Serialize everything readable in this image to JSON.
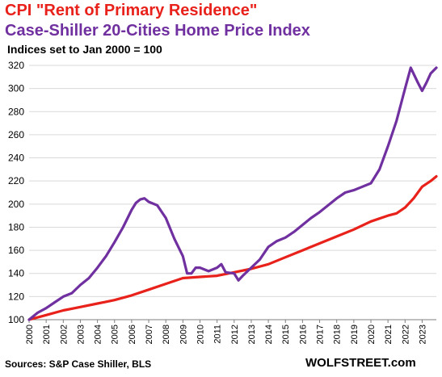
{
  "chart_data": {
    "type": "line",
    "title": "CPI \"Rent of Primary Residence\"",
    "title2": "Case-Shiller 20-Cities Home Price Index",
    "subtitle": "Indices set to Jan 2000 = 100",
    "source": "Sources: S&P Case Shiller, BLS",
    "brand": "WOLFSTREET.com",
    "ylim": [
      100,
      320
    ],
    "yticks": [
      100,
      120,
      140,
      160,
      180,
      200,
      220,
      240,
      260,
      280,
      300,
      320
    ],
    "xlim": [
      2000,
      2023.83
    ],
    "xticks": [
      "2000",
      "2001",
      "2002",
      "2003",
      "2004",
      "2005",
      "2006",
      "2007",
      "2008",
      "2009",
      "2010",
      "2011",
      "2012",
      "2013",
      "2014",
      "2015",
      "2016",
      "2017",
      "2018",
      "2019",
      "2020",
      "2021",
      "2022",
      "2023"
    ],
    "grid": "horizontal",
    "series": [
      {
        "color": "#e8211b",
        "x": [
          2000,
          2001,
          2002,
          2003,
          2004,
          2005,
          2006,
          2007,
          2008,
          2009,
          2010,
          2011,
          2012,
          2013,
          2014,
          2015,
          2016,
          2017,
          2018,
          2019,
          2020,
          2021,
          2021.5,
          2022,
          2022.5,
          2023,
          2023.5,
          2023.83
        ],
        "y": [
          100,
          104,
          108,
          111,
          114,
          117,
          121,
          126,
          131,
          136,
          137,
          138,
          141,
          144,
          148,
          154,
          160,
          166,
          172,
          178,
          185,
          190,
          192,
          197,
          205,
          215,
          220,
          224
        ]
      },
      {
        "color": "#7030a0",
        "x": [
          2000,
          2000.5,
          2001,
          2001.5,
          2002,
          2002.5,
          2003,
          2003.5,
          2004,
          2004.5,
          2005,
          2005.5,
          2006,
          2006.25,
          2006.5,
          2006.75,
          2007,
          2007.5,
          2008,
          2008.5,
          2009,
          2009.25,
          2009.5,
          2009.75,
          2010,
          2010.5,
          2011,
          2011.25,
          2011.5,
          2012,
          2012.25,
          2012.5,
          2013,
          2013.5,
          2014,
          2014.5,
          2015,
          2015.5,
          2016,
          2016.5,
          2017,
          2017.5,
          2018,
          2018.5,
          2019,
          2019.5,
          2020,
          2020.5,
          2021,
          2021.5,
          2022,
          2022.33,
          2022.75,
          2023,
          2023.25,
          2023.5,
          2023.83
        ],
        "y": [
          100,
          106,
          110,
          115,
          120,
          123,
          130,
          136,
          145,
          155,
          167,
          180,
          195,
          201,
          204,
          205,
          202,
          199,
          188,
          170,
          155,
          140,
          140,
          145,
          145,
          142,
          145,
          148,
          141,
          140,
          134,
          138,
          145,
          152,
          163,
          168,
          171,
          176,
          182,
          188,
          193,
          199,
          205,
          210,
          212,
          215,
          218,
          230,
          250,
          272,
          300,
          318,
          305,
          298,
          305,
          313,
          318
        ]
      }
    ]
  }
}
